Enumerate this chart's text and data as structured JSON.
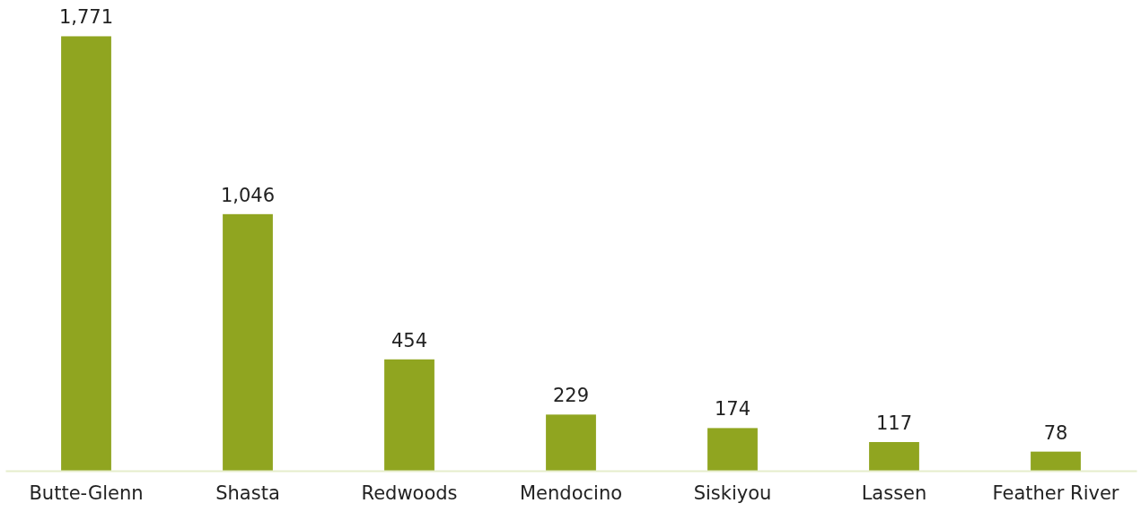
{
  "chart_data": {
    "type": "bar",
    "categories": [
      "Butte-Glenn",
      "Shasta",
      "Redwoods",
      "Mendocino",
      "Siskiyou",
      "Lassen",
      "Feather River"
    ],
    "values": [
      1771,
      1046,
      454,
      229,
      174,
      117,
      78
    ],
    "color": "#90a520",
    "value_labels": [
      "1,771",
      "1,046",
      "454",
      "229",
      "174",
      "117",
      "78"
    ]
  }
}
